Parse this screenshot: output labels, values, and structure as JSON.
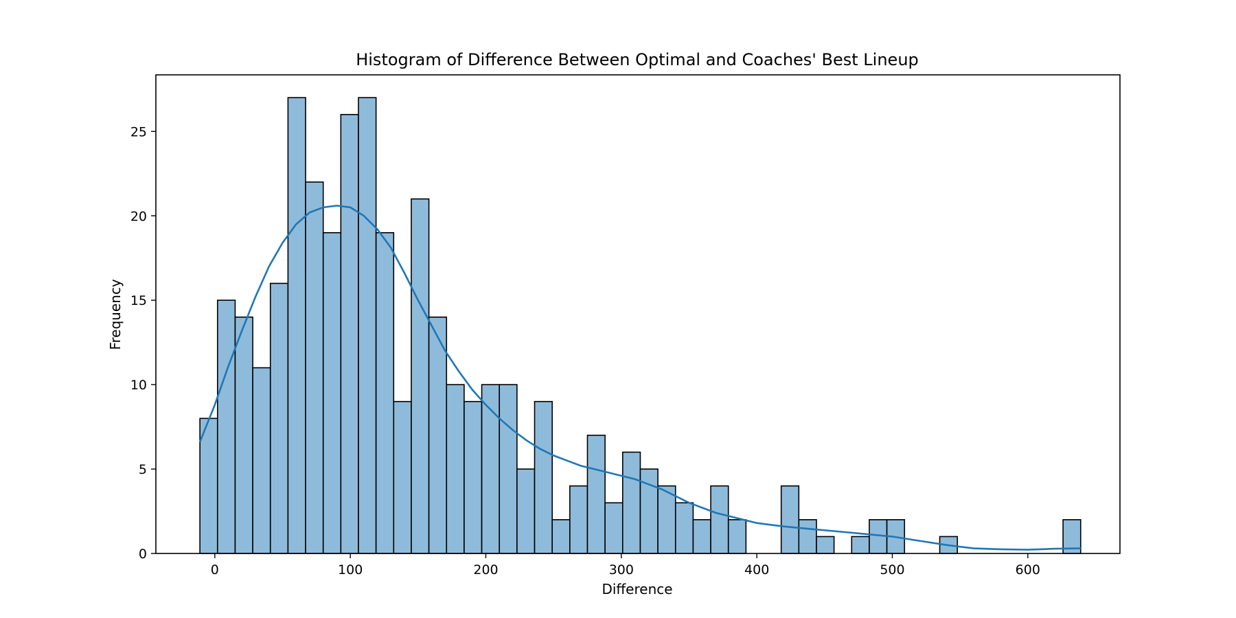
{
  "chart_data": {
    "type": "bar",
    "title": "Histogram of Difference Between Optimal and Coaches' Best Lineup",
    "xlabel": "Difference",
    "ylabel": "Frequency",
    "xlim": [
      -43.5,
      668
    ],
    "ylim": [
      0,
      28.35
    ],
    "xticks": [
      0,
      100,
      200,
      300,
      400,
      500,
      600
    ],
    "yticks": [
      0,
      5,
      10,
      15,
      20,
      25
    ],
    "bin_start": -11,
    "bin_width": 13,
    "values": [
      8,
      15,
      14,
      11,
      16,
      27,
      22,
      19,
      26,
      27,
      19,
      9,
      21,
      14,
      10,
      9,
      10,
      10,
      5,
      9,
      2,
      4,
      7,
      3,
      6,
      5,
      4,
      3,
      2,
      4,
      2,
      0,
      0,
      4,
      2,
      1,
      0,
      1,
      2,
      2,
      0,
      0,
      1,
      0,
      0,
      0,
      0,
      0,
      0,
      2
    ],
    "bar_color": "#8fbbdb",
    "kde_color": "#1f77b4",
    "kde": {
      "x": [
        -11,
        0,
        10,
        20,
        30,
        40,
        50,
        60,
        70,
        80,
        90,
        100,
        110,
        120,
        130,
        140,
        150,
        160,
        170,
        180,
        190,
        200,
        210,
        220,
        230,
        240,
        250,
        260,
        270,
        280,
        290,
        300,
        310,
        320,
        330,
        340,
        350,
        360,
        370,
        380,
        390,
        400,
        420,
        440,
        460,
        480,
        500,
        520,
        540,
        560,
        580,
        600,
        620,
        639
      ],
      "y": [
        6.6,
        8.8,
        11.1,
        13.2,
        15.2,
        17.0,
        18.4,
        19.5,
        20.2,
        20.5,
        20.6,
        20.5,
        20.0,
        19.2,
        18.1,
        16.6,
        15.0,
        13.5,
        12.0,
        10.8,
        9.7,
        8.8,
        8.0,
        7.3,
        6.7,
        6.2,
        5.8,
        5.5,
        5.2,
        5.0,
        4.8,
        4.6,
        4.4,
        4.1,
        3.8,
        3.4,
        3.0,
        2.7,
        2.4,
        2.2,
        2.0,
        1.8,
        1.6,
        1.45,
        1.3,
        1.15,
        1.0,
        0.75,
        0.5,
        0.3,
        0.25,
        0.22,
        0.28,
        0.3
      ]
    }
  }
}
